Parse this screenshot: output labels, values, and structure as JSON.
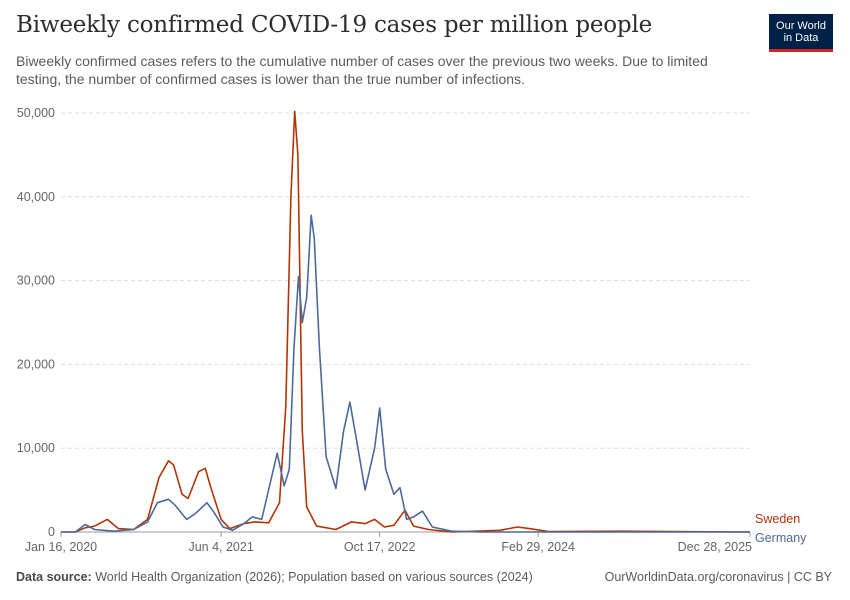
{
  "header": {
    "title": "Biweekly confirmed COVID-19 cases per million people",
    "subtitle": "Biweekly confirmed cases refers to the cumulative number of cases over the previous two weeks. Due to limited testing, the number of confirmed cases is lower than the true number of infections.",
    "logo_line1": "Our World",
    "logo_line2": "in Data"
  },
  "footer": {
    "source_label": "Data source:",
    "source_text": "World Health Organization (2026); Population based on various sources (2024)",
    "right_text": "OurWorldinData.org/coronavirus | CC BY"
  },
  "chart_data": {
    "type": "line",
    "title": "Biweekly confirmed COVID-19 cases per million people",
    "xlabel": "",
    "ylabel": "",
    "x_ticks": [
      "Jan 16, 2020",
      "Jun 4, 2021",
      "Oct 17, 2022",
      "Feb 29, 2024",
      "Dec 28, 2025"
    ],
    "y_ticks": [
      0,
      10000,
      20000,
      30000,
      40000,
      50000
    ],
    "y_tick_labels": [
      "0",
      "10,000",
      "20,000",
      "30,000",
      "40,000",
      "50,000"
    ],
    "xlim": [
      "2020-01-16",
      "2025-12-28"
    ],
    "ylim": [
      0,
      50000
    ],
    "grid": true,
    "legend": "right, labels at line ends",
    "series": [
      {
        "name": "Sweden",
        "color": "#b13507",
        "points": [
          [
            "2020-01-16",
            0
          ],
          [
            "2020-03-01",
            0
          ],
          [
            "2020-04-01",
            500
          ],
          [
            "2020-05-01",
            700
          ],
          [
            "2020-06-10",
            1500
          ],
          [
            "2020-07-15",
            400
          ],
          [
            "2020-09-01",
            300
          ],
          [
            "2020-10-15",
            1500
          ],
          [
            "2020-11-20",
            6500
          ],
          [
            "2020-12-20",
            8500
          ],
          [
            "2021-01-05",
            8000
          ],
          [
            "2021-02-01",
            4500
          ],
          [
            "2021-02-20",
            4000
          ],
          [
            "2021-03-25",
            7200
          ],
          [
            "2021-04-15",
            7600
          ],
          [
            "2021-05-01",
            5500
          ],
          [
            "2021-06-04",
            1500
          ],
          [
            "2021-07-01",
            400
          ],
          [
            "2021-08-15",
            1000
          ],
          [
            "2021-09-20",
            1200
          ],
          [
            "2021-11-01",
            1100
          ],
          [
            "2021-12-05",
            3500
          ],
          [
            "2021-12-25",
            15000
          ],
          [
            "2022-01-10",
            40000
          ],
          [
            "2022-01-22",
            50200
          ],
          [
            "2022-02-01",
            45000
          ],
          [
            "2022-02-15",
            12000
          ],
          [
            "2022-03-01",
            3000
          ],
          [
            "2022-04-01",
            700
          ],
          [
            "2022-06-01",
            300
          ],
          [
            "2022-07-20",
            1200
          ],
          [
            "2022-09-01",
            1000
          ],
          [
            "2022-10-01",
            1500
          ],
          [
            "2022-11-01",
            600
          ],
          [
            "2022-12-01",
            800
          ],
          [
            "2023-01-05",
            2600
          ],
          [
            "2023-02-01",
            700
          ],
          [
            "2023-03-20",
            300
          ],
          [
            "2023-06-01",
            0
          ],
          [
            "2023-11-01",
            200
          ],
          [
            "2023-12-25",
            600
          ],
          [
            "2024-02-01",
            400
          ],
          [
            "2024-04-01",
            50
          ],
          [
            "2024-12-01",
            100
          ],
          [
            "2025-05-01",
            50
          ],
          [
            "2025-12-28",
            0
          ]
        ]
      },
      {
        "name": "Germany",
        "color": "#4c6a9c",
        "points": [
          [
            "2020-01-16",
            0
          ],
          [
            "2020-03-01",
            0
          ],
          [
            "2020-04-01",
            900
          ],
          [
            "2020-05-01",
            300
          ],
          [
            "2020-07-01",
            100
          ],
          [
            "2020-09-01",
            300
          ],
          [
            "2020-10-15",
            1200
          ],
          [
            "2020-11-15",
            3500
          ],
          [
            "2020-12-20",
            3900
          ],
          [
            "2021-01-10",
            3200
          ],
          [
            "2021-02-15",
            1500
          ],
          [
            "2021-03-15",
            2200
          ],
          [
            "2021-04-20",
            3500
          ],
          [
            "2021-05-10",
            2500
          ],
          [
            "2021-06-10",
            600
          ],
          [
            "2021-07-10",
            200
          ],
          [
            "2021-08-15",
            1000
          ],
          [
            "2021-09-10",
            1800
          ],
          [
            "2021-10-10",
            1500
          ],
          [
            "2021-11-10",
            6500
          ],
          [
            "2021-11-28",
            9400
          ],
          [
            "2021-12-20",
            5500
          ],
          [
            "2022-01-05",
            7500
          ],
          [
            "2022-01-20",
            22000
          ],
          [
            "2022-02-03",
            30500
          ],
          [
            "2022-02-15",
            25000
          ],
          [
            "2022-03-01",
            28000
          ],
          [
            "2022-03-15",
            37800
          ],
          [
            "2022-03-25",
            35000
          ],
          [
            "2022-04-10",
            22000
          ],
          [
            "2022-05-01",
            9000
          ],
          [
            "2022-06-01",
            5200
          ],
          [
            "2022-06-25",
            12000
          ],
          [
            "2022-07-15",
            15500
          ],
          [
            "2022-08-05",
            11000
          ],
          [
            "2022-09-01",
            5000
          ],
          [
            "2022-10-01",
            10000
          ],
          [
            "2022-10-17",
            14800
          ],
          [
            "2022-11-05",
            7500
          ],
          [
            "2022-12-01",
            4500
          ],
          [
            "2022-12-20",
            5300
          ],
          [
            "2023-01-10",
            1500
          ],
          [
            "2023-02-01",
            1800
          ],
          [
            "2023-03-01",
            2500
          ],
          [
            "2023-04-01",
            600
          ],
          [
            "2023-06-01",
            100
          ],
          [
            "2023-09-01",
            0
          ],
          [
            "2025-12-28",
            0
          ]
        ]
      }
    ]
  }
}
